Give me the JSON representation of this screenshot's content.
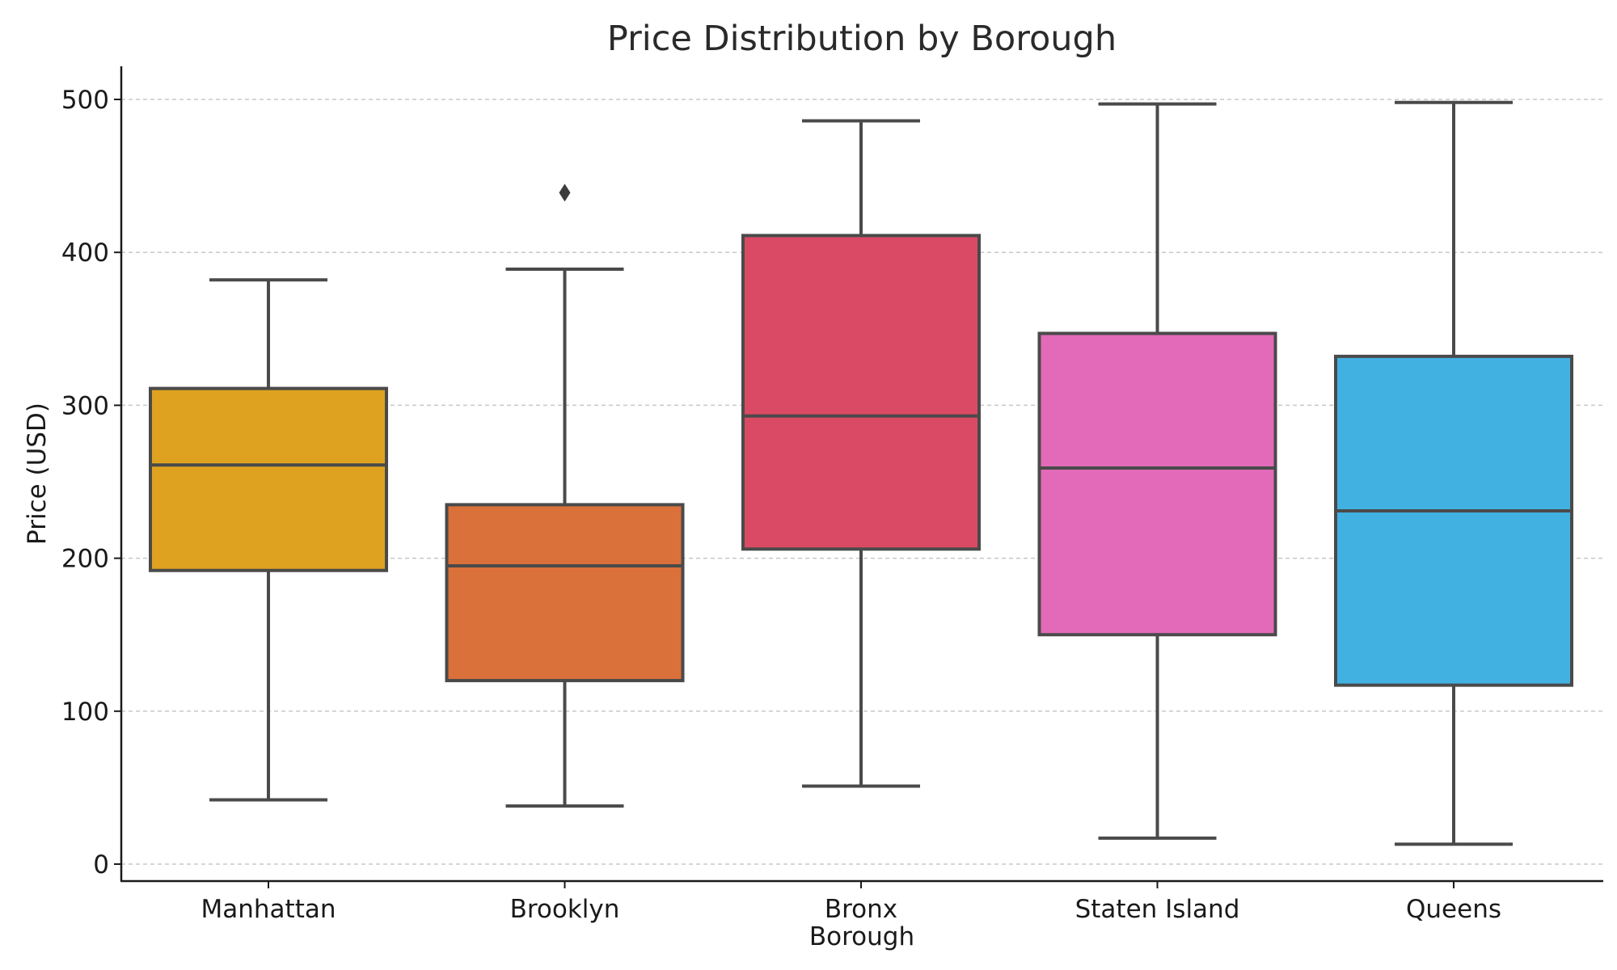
{
  "chart_data": {
    "type": "box",
    "title": "Price Distribution by Borough",
    "xlabel": "Borough",
    "ylabel": "Price (USD)",
    "ylim": [
      -12,
      522
    ],
    "yticks": [
      0,
      100,
      200,
      300,
      400,
      500
    ],
    "grid": "horizontal dashed",
    "categories": [
      "Manhattan",
      "Brooklyn",
      "Bronx",
      "Staten Island",
      "Queens"
    ],
    "colors": [
      "#DFA220",
      "#DA703A",
      "#DB4A64",
      "#E36AB8",
      "#41B1E2"
    ],
    "boxes": [
      {
        "category": "Manhattan",
        "whisker_low": 42,
        "q1": 192,
        "median": 261,
        "q3": 311,
        "whisker_high": 382,
        "outliers": []
      },
      {
        "category": "Brooklyn",
        "whisker_low": 38,
        "q1": 120,
        "median": 195,
        "q3": 235,
        "whisker_high": 389,
        "outliers": [
          439
        ]
      },
      {
        "category": "Bronx",
        "whisker_low": 51,
        "q1": 206,
        "median": 293,
        "q3": 411,
        "whisker_high": 486,
        "outliers": []
      },
      {
        "category": "Staten Island",
        "whisker_low": 17,
        "q1": 150,
        "median": 259,
        "q3": 347,
        "whisker_high": 497,
        "outliers": []
      },
      {
        "category": "Queens",
        "whisker_low": 13,
        "q1": 117,
        "median": 231,
        "q3": 332,
        "whisker_high": 498,
        "outliers": []
      }
    ]
  }
}
